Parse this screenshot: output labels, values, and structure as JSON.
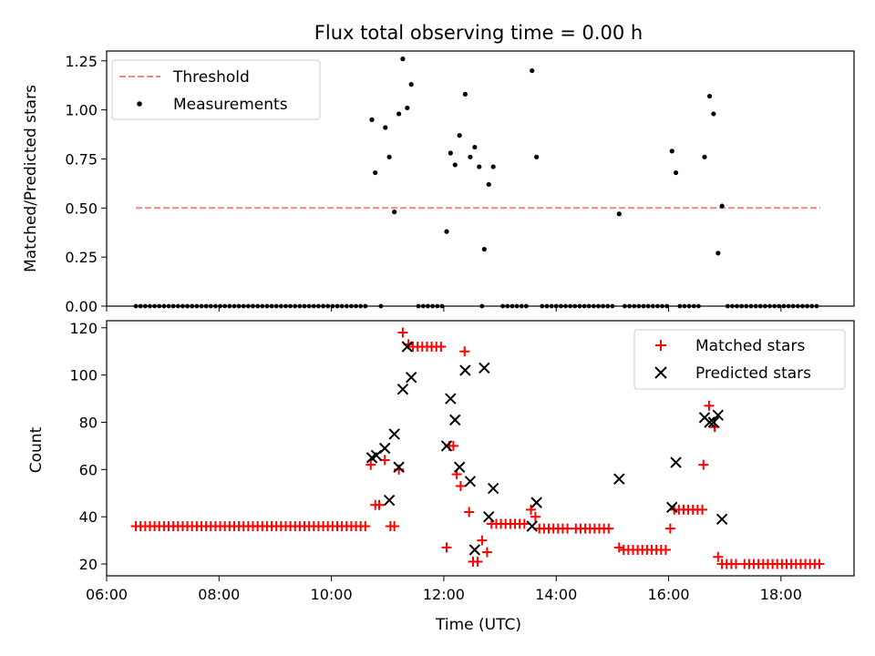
{
  "figure": {
    "title": "Flux total observing time = 0.00 h",
    "xlabel": "Time (UTC)"
  },
  "chart_data": [
    {
      "type": "scatter",
      "panel": "top",
      "ylabel": "Matched/Predicted stars",
      "xlim": [
        6.0,
        19.3
      ],
      "ylim": [
        0,
        1.3
      ],
      "yticks": [
        0.0,
        0.25,
        0.5,
        0.75,
        1.0,
        1.25
      ],
      "ytick_labels": [
        "0.00",
        "0.25",
        "0.50",
        "0.75",
        "1.00",
        "1.25"
      ],
      "xticks": [
        6,
        8,
        10,
        12,
        14,
        16,
        18
      ],
      "legend_position": "upper left",
      "threshold": {
        "name": "Threshold",
        "y": 0.5,
        "x": [
          6.52,
          18.7
        ],
        "color": "#ff7f7f"
      },
      "measurements": {
        "name": "Measurements",
        "color": "#000000",
        "points": [
          [
            10.72,
            0.95
          ],
          [
            10.78,
            0.68
          ],
          [
            10.96,
            0.91
          ],
          [
            11.03,
            0.76
          ],
          [
            11.12,
            0.48
          ],
          [
            11.2,
            0.98
          ],
          [
            11.27,
            1.26
          ],
          [
            11.35,
            1.01
          ],
          [
            11.42,
            1.13
          ],
          [
            12.05,
            0.38
          ],
          [
            12.12,
            0.78
          ],
          [
            12.2,
            0.72
          ],
          [
            12.28,
            0.87
          ],
          [
            12.38,
            1.08
          ],
          [
            12.47,
            0.76
          ],
          [
            12.55,
            0.81
          ],
          [
            12.63,
            0.71
          ],
          [
            12.72,
            0.29
          ],
          [
            12.8,
            0.62
          ],
          [
            12.88,
            0.71
          ],
          [
            13.57,
            1.2
          ],
          [
            13.65,
            0.76
          ],
          [
            15.12,
            0.47
          ],
          [
            16.06,
            0.79
          ],
          [
            16.13,
            0.68
          ],
          [
            16.64,
            0.76
          ],
          [
            16.73,
            1.07
          ],
          [
            16.8,
            0.98
          ],
          [
            16.88,
            0.27
          ],
          [
            16.95,
            0.51
          ]
        ],
        "zero_segments": [
          [
            6.52,
            10.62
          ],
          [
            10.88,
            10.92
          ],
          [
            11.55,
            12.0
          ],
          [
            12.68,
            12.68
          ],
          [
            13.05,
            13.5
          ],
          [
            13.75,
            15.05
          ],
          [
            15.22,
            16.0
          ],
          [
            16.2,
            16.57
          ],
          [
            17.05,
            18.7
          ]
        ],
        "zero_step_minutes": 5
      }
    },
    {
      "type": "scatter",
      "panel": "bottom",
      "ylabel": "Count",
      "xlim": [
        6.0,
        19.3
      ],
      "ylim": [
        15,
        123
      ],
      "yticks": [
        20,
        40,
        60,
        80,
        100,
        120
      ],
      "ytick_labels": [
        "20",
        "40",
        "60",
        "80",
        "100",
        "120"
      ],
      "xticks": [
        6,
        8,
        10,
        12,
        14,
        16,
        18
      ],
      "xtick_labels": [
        "06:00",
        "08:00",
        "10:00",
        "12:00",
        "14:00",
        "16:00",
        "18:00"
      ],
      "legend_position": "upper right",
      "matched": {
        "name": "Matched stars",
        "color": "#ff0000",
        "points": [
          [
            10.7,
            62
          ],
          [
            10.78,
            45
          ],
          [
            10.85,
            45
          ],
          [
            10.95,
            64
          ],
          [
            11.05,
            36
          ],
          [
            11.12,
            36
          ],
          [
            11.2,
            60
          ],
          [
            11.27,
            118
          ],
          [
            11.37,
            113
          ],
          [
            12.05,
            27
          ],
          [
            12.1,
            70
          ],
          [
            12.17,
            70
          ],
          [
            12.23,
            58
          ],
          [
            12.3,
            53
          ],
          [
            12.37,
            110
          ],
          [
            12.45,
            42
          ],
          [
            12.52,
            21
          ],
          [
            12.6,
            21
          ],
          [
            12.68,
            30
          ],
          [
            12.77,
            25
          ],
          [
            13.55,
            43
          ],
          [
            13.63,
            40
          ],
          [
            15.12,
            27
          ],
          [
            16.03,
            35
          ],
          [
            16.62,
            62
          ],
          [
            16.72,
            87
          ],
          [
            16.82,
            78
          ],
          [
            16.88,
            23
          ]
        ],
        "segments": [
          [
            6.52,
            10.65,
            36
          ],
          [
            11.45,
            12.0,
            112
          ],
          [
            12.85,
            13.5,
            37
          ],
          [
            13.7,
            14.25,
            35
          ],
          [
            14.35,
            14.95,
            35
          ],
          [
            15.2,
            15.95,
            26
          ],
          [
            16.1,
            16.6,
            43
          ],
          [
            16.95,
            17.25,
            20
          ],
          [
            17.35,
            18.7,
            20
          ]
        ],
        "segment_step_minutes": 5
      },
      "predicted": {
        "name": "Predicted stars",
        "color": "#000000",
        "points": [
          [
            10.72,
            65
          ],
          [
            10.8,
            66
          ],
          [
            10.95,
            69
          ],
          [
            11.03,
            47
          ],
          [
            11.12,
            75
          ],
          [
            11.2,
            61
          ],
          [
            11.27,
            94
          ],
          [
            11.35,
            112
          ],
          [
            11.42,
            99
          ],
          [
            12.05,
            70
          ],
          [
            12.12,
            90
          ],
          [
            12.2,
            81
          ],
          [
            12.28,
            61
          ],
          [
            12.38,
            102
          ],
          [
            12.47,
            55
          ],
          [
            12.55,
            26
          ],
          [
            12.72,
            103
          ],
          [
            12.8,
            40
          ],
          [
            12.88,
            52
          ],
          [
            13.57,
            36
          ],
          [
            13.65,
            46
          ],
          [
            15.12,
            56
          ],
          [
            16.06,
            44
          ],
          [
            16.13,
            63
          ],
          [
            16.64,
            82
          ],
          [
            16.73,
            80
          ],
          [
            16.8,
            80
          ],
          [
            16.88,
            83
          ],
          [
            16.95,
            39
          ]
        ]
      }
    }
  ]
}
